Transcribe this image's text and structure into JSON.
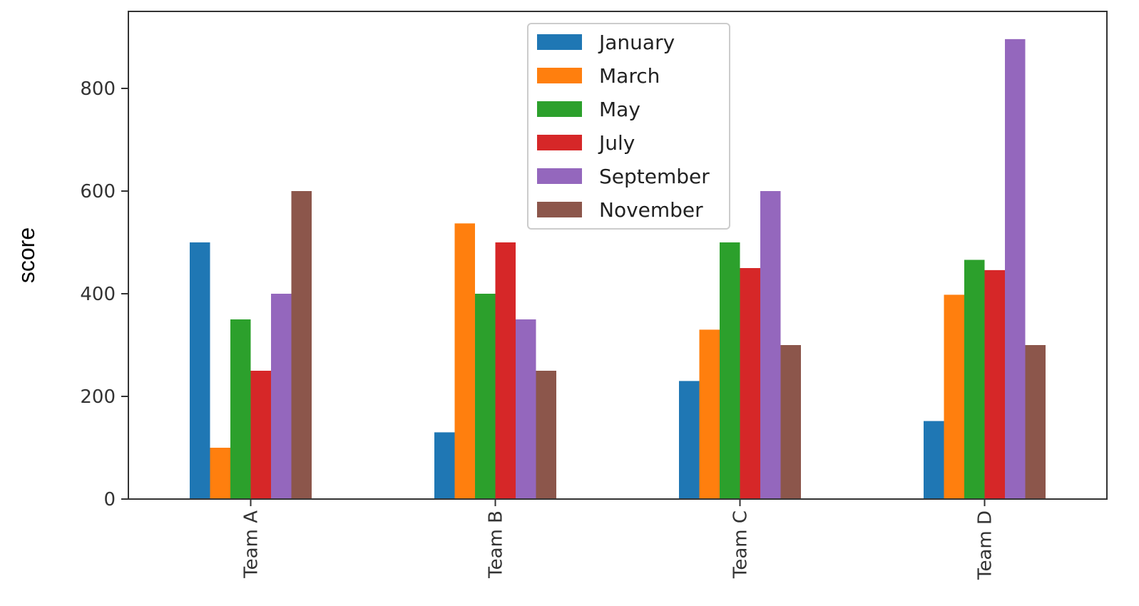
{
  "chart_data": {
    "type": "bar",
    "title": "",
    "xlabel": "",
    "ylabel": "score",
    "ylim": [
      0,
      950
    ],
    "yticks": [
      0,
      200,
      400,
      600,
      800
    ],
    "grid": false,
    "legend_position": "top-center",
    "categories": [
      "Team A",
      "Team B",
      "Team C",
      "Team D"
    ],
    "series": [
      {
        "name": "January",
        "color": "#1f77b4",
        "values": [
          500,
          130,
          230,
          152
        ]
      },
      {
        "name": "March",
        "color": "#ff7f0e",
        "values": [
          100,
          537,
          330,
          398
        ]
      },
      {
        "name": "May",
        "color": "#2ca02c",
        "values": [
          350,
          400,
          500,
          466
        ]
      },
      {
        "name": "July",
        "color": "#d62728",
        "values": [
          250,
          500,
          450,
          446
        ]
      },
      {
        "name": "September",
        "color": "#9467bd",
        "values": [
          400,
          350,
          600,
          896
        ]
      },
      {
        "name": "November",
        "color": "#8c564b",
        "values": [
          600,
          250,
          300,
          300
        ]
      }
    ]
  }
}
